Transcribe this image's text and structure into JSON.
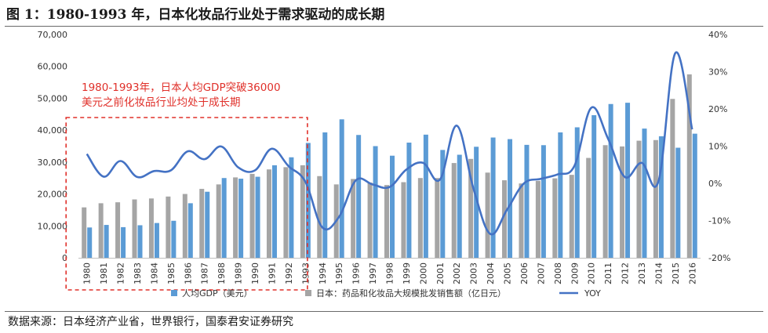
{
  "figure": {
    "title": "图 1：1980-1993 年，日本化妆品行业处于需求驱动的成长期",
    "source": "数据来源：日本经济产业省，世界银行，国泰君安证券研究"
  },
  "colors": {
    "gdp_bar": "#5b9bd5",
    "sales_bar": "#a5a5a5",
    "yoy_line": "#4472c4",
    "highlight_box": "#e0302a",
    "annotation_text": "#e0302a"
  },
  "chart_data": {
    "type": "bar",
    "categories": [
      "1980",
      "1981",
      "1982",
      "1983",
      "1984",
      "1985",
      "1986",
      "1987",
      "1988",
      "1989",
      "1990",
      "1991",
      "1992",
      "1993",
      "1994",
      "1995",
      "1996",
      "1997",
      "1998",
      "1999",
      "2000",
      "2001",
      "2002",
      "2003",
      "2004",
      "2005",
      "2006",
      "2007",
      "2008",
      "2009",
      "2010",
      "2011",
      "2012",
      "2013",
      "2014",
      "2015",
      "2016"
    ],
    "series": [
      {
        "name": "人均GDP（美元）",
        "type": "bar",
        "axis": "left",
        "values": [
          9500,
          10300,
          9600,
          10200,
          10900,
          11600,
          17100,
          20700,
          25000,
          24800,
          25400,
          29000,
          31500,
          36000,
          39300,
          43400,
          38500,
          35000,
          32000,
          36100,
          38600,
          33800,
          32300,
          34800,
          37700,
          37200,
          35400,
          35300,
          39300,
          40900,
          44700,
          48200,
          48600,
          40500,
          38100,
          34500,
          38900
        ]
      },
      {
        "name": "日本：药品和化妆品大规模批发销售额（亿日元）",
        "type": "bar",
        "axis": "right-left-scale",
        "values": [
          15800,
          17100,
          17400,
          18300,
          18600,
          19200,
          20000,
          21600,
          23000,
          25200,
          26300,
          27700,
          28400,
          29000,
          25600,
          23000,
          24700,
          23600,
          22800,
          23700,
          25000,
          25000,
          29700,
          31000,
          26700,
          24300,
          23300,
          24100,
          24900,
          26000,
          31300,
          35300,
          34900,
          36700,
          36900,
          49800,
          57500
        ]
      },
      {
        "name": "YOY",
        "type": "line",
        "axis": "right",
        "values": [
          7.9,
          1.8,
          6.0,
          1.7,
          3.3,
          3.5,
          8.6,
          6.5,
          9.9,
          4.3,
          3.5,
          9.3,
          4.6,
          0.4,
          -11.8,
          -9.0,
          0.8,
          -0.3,
          -1.0,
          3.7,
          5.5,
          1.0,
          15.5,
          -1.5,
          -13.6,
          -7.0,
          0.0,
          1.2,
          2.4,
          4.7,
          20.3,
          12.0,
          1.7,
          5.5,
          0.6,
          35.0,
          14.5
        ]
      }
    ],
    "y_left": {
      "min": 0,
      "max": 70000,
      "step": 10000,
      "ticks": [
        "0",
        "10,000",
        "20,000",
        "30,000",
        "40,000",
        "50,000",
        "60,000",
        "70,000"
      ]
    },
    "y_right": {
      "min": -20,
      "max": 40,
      "step": 10,
      "ticks": [
        "-20%",
        "-10%",
        "0%",
        "10%",
        "20%",
        "30%",
        "40%"
      ]
    },
    "legend": {
      "position": "bottom",
      "items": [
        "人均GDP（美元）",
        "日本：药品和化妆品大规模批发销售额（亿日元）",
        "YOY"
      ]
    },
    "annotation": {
      "lines": [
        "1980-1993年，日本人均GDP突破36000",
        "美元之前化妆品行业均处于成长期"
      ],
      "highlight_range": [
        "1980",
        "1993"
      ]
    },
    "grid": false
  }
}
